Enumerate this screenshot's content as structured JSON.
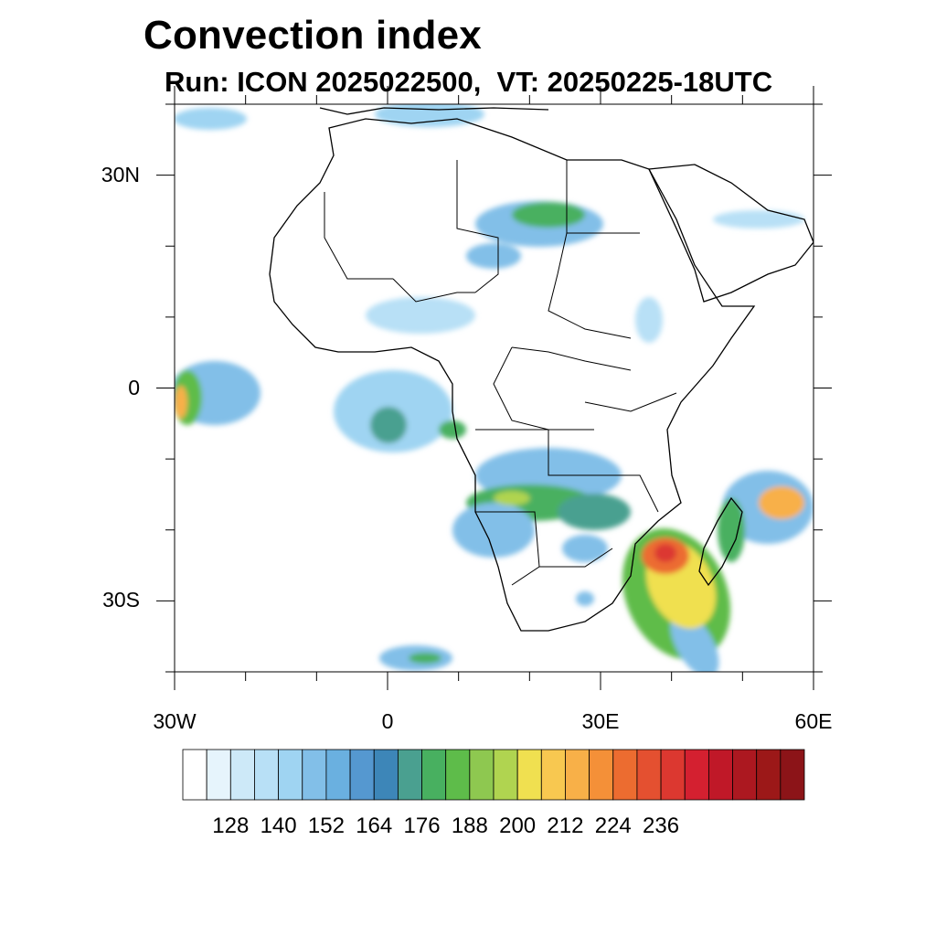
{
  "title": "Convection index",
  "subtitle": "Run: ICON 2025022500,  VT: 20250225-18UTC",
  "map": {
    "projection": "cylindrical equidistant",
    "lon_range": [
      -30,
      60
    ],
    "lat_range": [
      -40,
      40
    ],
    "lat_ticks": [
      {
        "value": 30,
        "label": "30N"
      },
      {
        "value": 0,
        "label": "0"
      },
      {
        "value": -30,
        "label": "30S"
      }
    ],
    "lon_ticks": [
      {
        "value": -30,
        "label": "30W"
      },
      {
        "value": 0,
        "label": "0"
      },
      {
        "value": 30,
        "label": "30E"
      },
      {
        "value": 60,
        "label": "60E"
      }
    ]
  },
  "colorbar": {
    "colors": [
      "#ffffff",
      "#e6f4fc",
      "#cde9f8",
      "#b8e0f6",
      "#9fd4f2",
      "#82bfe8",
      "#6ab0e0",
      "#5598d0",
      "#3d86b8",
      "#4aa090",
      "#48b060",
      "#5ebc4a",
      "#8ec850",
      "#b0d450",
      "#f0e050",
      "#f8c850",
      "#f8b048",
      "#f49038",
      "#ec6c30",
      "#e45030",
      "#dc3830",
      "#d42030",
      "#c01828",
      "#ac1820",
      "#9c1818",
      "#8c1418"
    ],
    "labels": [
      "128",
      "140",
      "152",
      "164",
      "176",
      "188",
      "200",
      "212",
      "224",
      "236"
    ]
  }
}
